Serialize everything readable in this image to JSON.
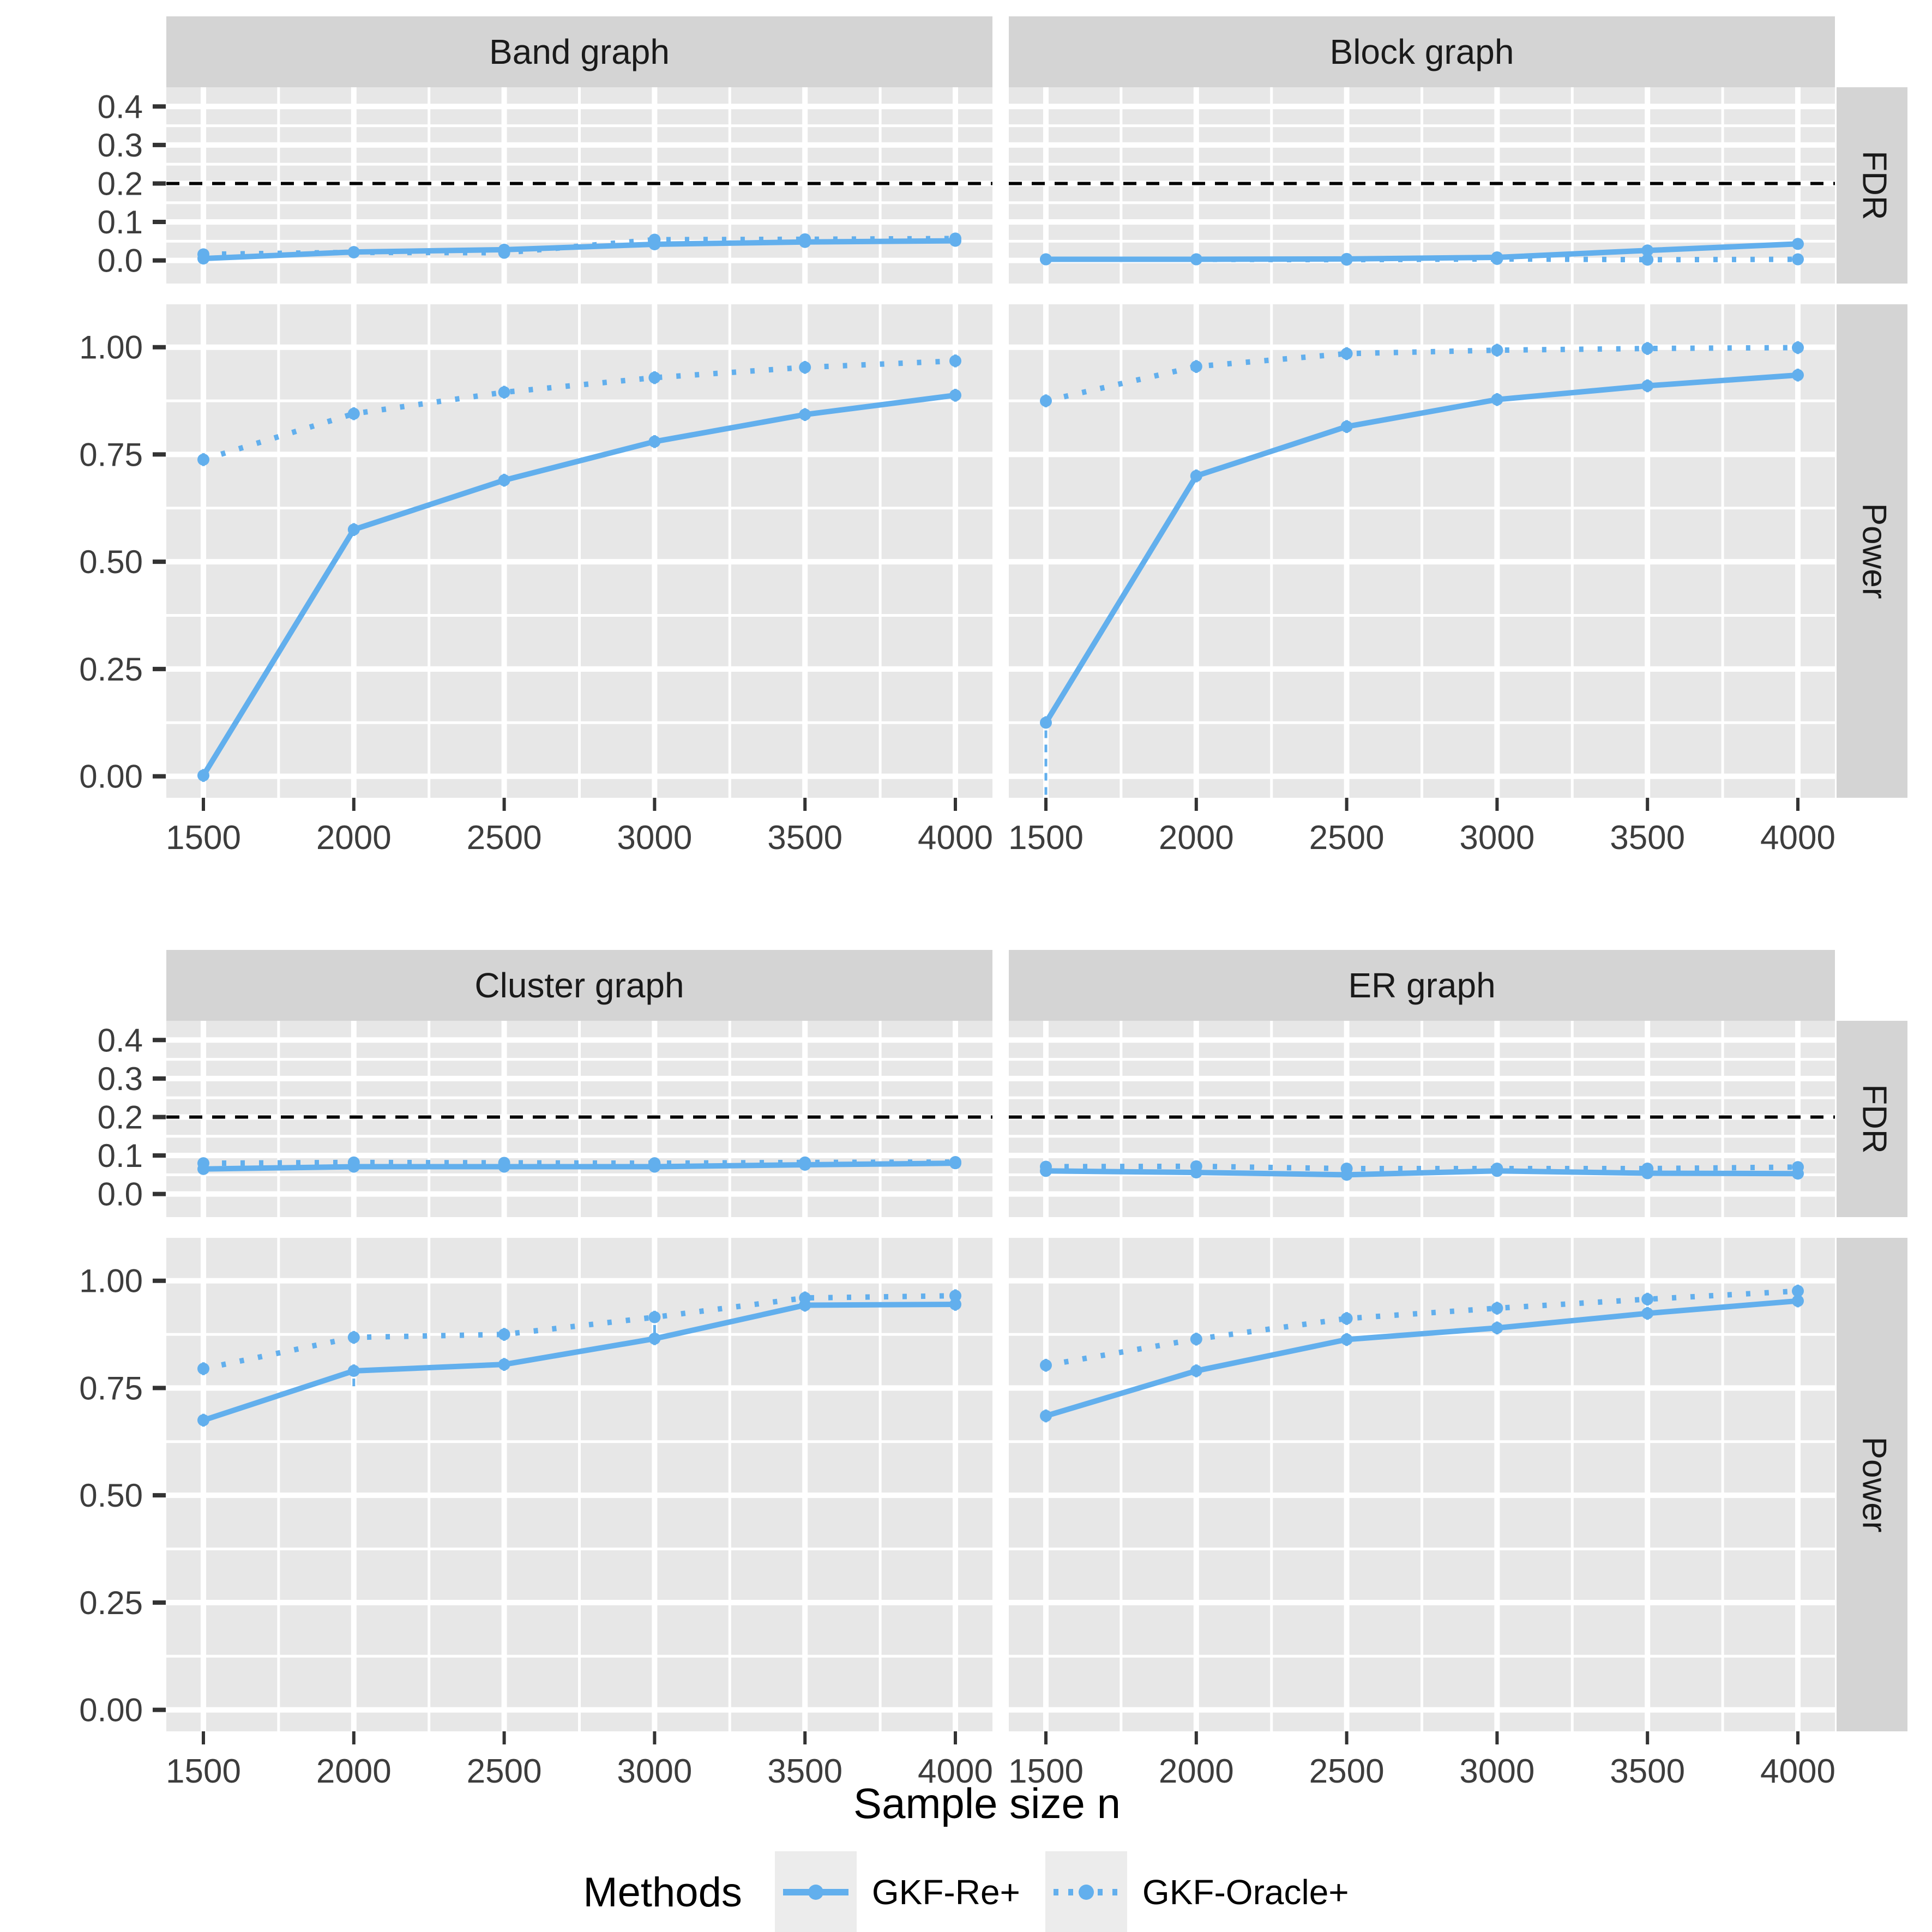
{
  "figure": {
    "xlabel": "Sample size n"
  },
  "legend": {
    "title": "Methods",
    "items": [
      {
        "label": "GKF-Re+",
        "style": "solid"
      },
      {
        "label": "GKF-Oracle+",
        "style": "dotted"
      }
    ]
  },
  "colors": {
    "series_blue": "#62AFED",
    "panel_bg": "#E7E7E7",
    "strip_bg": "#D4D4D4",
    "grid": "#FFFFFF",
    "ref_line": "#000000",
    "tick_text": "#3D3D3D",
    "strip_text": "#1A1A1A",
    "legend_key_bg": "#ECECEC"
  },
  "chart_data": {
    "type": "line",
    "title": "",
    "xlabel": "Sample size n",
    "x": [
      1500,
      2000,
      2500,
      3000,
      3500,
      4000
    ],
    "x_tick_labels": [
      "1500",
      "2000",
      "2500",
      "3000",
      "3500",
      "4000"
    ],
    "x_minor": [
      1750,
      2250,
      2750,
      3250,
      3750
    ],
    "facet_row_labels": [
      "FDR",
      "Power"
    ],
    "fdr_axis": {
      "ticks": [
        0.0,
        0.1,
        0.2,
        0.3,
        0.4
      ],
      "tick_labels": [
        "0.0",
        "0.1",
        "0.2",
        "0.3",
        "0.4"
      ],
      "minor": [
        0.05,
        0.15,
        0.25,
        0.35,
        0.45
      ],
      "domain_top": 0.45,
      "domain_bottom": -0.06,
      "ref_line": 0.2
    },
    "power_axis": {
      "ticks": [
        0.0,
        0.25,
        0.5,
        0.75,
        1.0
      ],
      "tick_labels": [
        "0.00",
        "0.25",
        "0.50",
        "0.75",
        "1.00"
      ],
      "minor": [
        0.125,
        0.375,
        0.625,
        0.875
      ],
      "domain_top": 1.1,
      "domain_bottom": -0.05
    },
    "series_order": [
      "GKF-Re+",
      "GKF-Oracle+"
    ],
    "default_err": {
      "fdr": 0.008,
      "power": 0.015
    },
    "facets": [
      {
        "title": "Band graph",
        "fdr": {
          "GKF-Re+": [
            0.005,
            0.022,
            0.028,
            0.042,
            0.048,
            0.051
          ],
          "GKF-Oracle+": [
            0.016,
            0.021,
            0.02,
            0.054,
            0.055,
            0.057
          ]
        },
        "power": {
          "GKF-Re+": [
            0.002,
            0.575,
            0.69,
            0.78,
            0.843,
            0.888
          ],
          "GKF-Oracle+": [
            0.738,
            0.845,
            0.895,
            0.929,
            0.953,
            0.968
          ]
        }
      },
      {
        "title": "Block graph",
        "fdr": {
          "GKF-Re+": [
            0.003,
            0.003,
            0.004,
            0.008,
            0.026,
            0.043
          ],
          "GKF-Oracle+": [
            0.003,
            0.003,
            0.002,
            0.004,
            0.002,
            0.003
          ]
        },
        "power": {
          "GKF-Re+": [
            0.125,
            0.7,
            0.815,
            0.878,
            0.91,
            0.935
          ],
          "GKF-Oracle+": [
            0.875,
            0.955,
            0.985,
            0.993,
            0.997,
            0.999
          ]
        }
      },
      {
        "title": "Cluster graph",
        "fdr": {
          "GKF-Re+": [
            0.065,
            0.071,
            0.071,
            0.071,
            0.076,
            0.08
          ],
          "GKF-Oracle+": [
            0.08,
            0.082,
            0.081,
            0.08,
            0.082,
            0.083
          ]
        },
        "power": {
          "GKF-Re+": [
            0.675,
            0.79,
            0.805,
            0.865,
            0.943,
            0.945
          ],
          "GKF-Oracle+": [
            0.795,
            0.868,
            0.875,
            0.915,
            0.96,
            0.965
          ]
        }
      },
      {
        "title": "ER graph",
        "fdr": {
          "GKF-Re+": [
            0.06,
            0.056,
            0.05,
            0.06,
            0.054,
            0.053
          ],
          "GKF-Oracle+": [
            0.071,
            0.072,
            0.066,
            0.066,
            0.066,
            0.07
          ]
        },
        "power": {
          "GKF-Re+": [
            0.685,
            0.79,
            0.863,
            0.89,
            0.924,
            0.953
          ],
          "GKF-Oracle+": [
            0.803,
            0.864,
            0.912,
            0.936,
            0.957,
            0.976
          ]
        }
      }
    ],
    "special_whiskers": [
      {
        "facet": "Block graph",
        "metric": "power",
        "series": "GKF-Re+",
        "index": 0,
        "low": 0.175,
        "style": "dashed"
      },
      {
        "facet": "Cluster graph",
        "metric": "power",
        "series": "GKF-Re+",
        "index": 1,
        "low": 0.04,
        "style": "dashed"
      },
      {
        "facet": "Cluster graph",
        "metric": "power",
        "series": "GKF-Oracle+",
        "index": 3,
        "low": 0.04,
        "style": "dashed"
      }
    ],
    "layout": {
      "grid": true,
      "legend_position": "bottom",
      "facet_grid": "2x2 columns, FDR/Power rows"
    }
  }
}
